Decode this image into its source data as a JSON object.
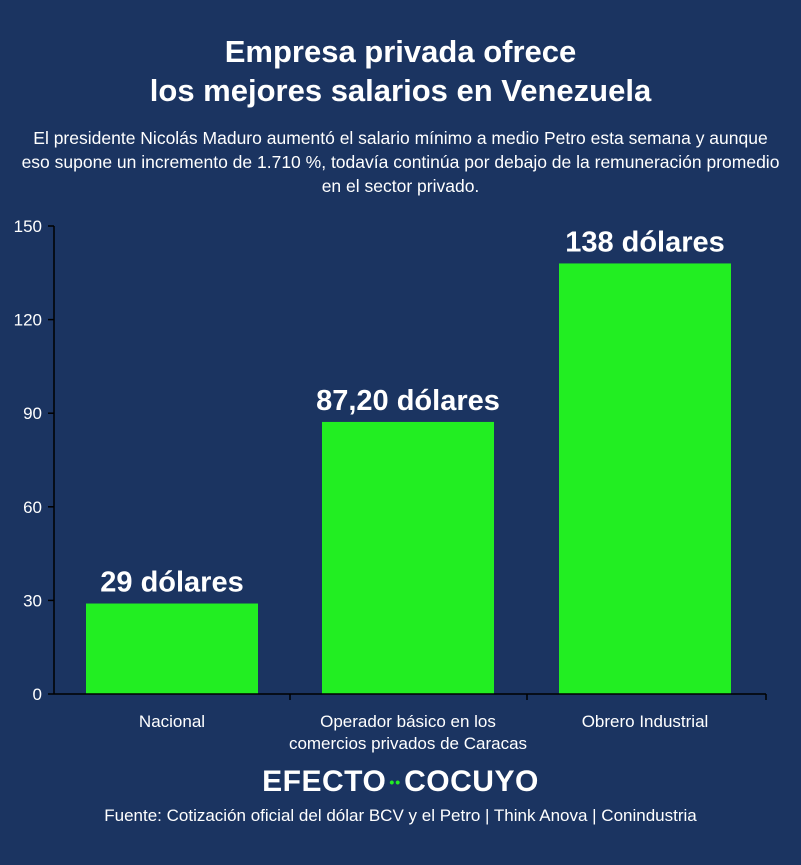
{
  "header": {
    "title_line1": "Empresa privada ofrece",
    "title_line2": "los mejores salarios en Venezuela",
    "subtitle": "El presidente Nicolás Maduro aumentó el salario mínimo a medio Petro esta semana y aunque eso supone un incremento de 1.710 %, todavía continúa por debajo de la remuneración promedio en el sector privado."
  },
  "chart_data": {
    "type": "bar",
    "categories": [
      "Nacional",
      "Operador básico en los comercios privados de Caracas",
      "Obrero Industrial"
    ],
    "category_lines": [
      [
        "Nacional"
      ],
      [
        "Operador básico en los",
        "comercios privados de Caracas"
      ],
      [
        "Obrero Industrial"
      ]
    ],
    "values": [
      29,
      87.2,
      138
    ],
    "data_labels": [
      "29 dólares",
      "87,20 dólares",
      "138 dólares"
    ],
    "yticks": [
      "0",
      "30",
      "60",
      "90",
      "120",
      "150"
    ],
    "ylim": [
      0,
      150
    ],
    "bar_color": "#22ee22",
    "axis_color": "#000000",
    "grid": false,
    "legend": "none"
  },
  "footer": {
    "logo_left": "EFECTO",
    "logo_dots": "••",
    "logo_right": "COCUYO",
    "source": "Fuente: Cotización oficial del dólar BCV y el Petro | Think Anova | Conindustria"
  },
  "colors": {
    "background": "#1b3461",
    "text": "#ffffff",
    "accent": "#22ee22"
  }
}
